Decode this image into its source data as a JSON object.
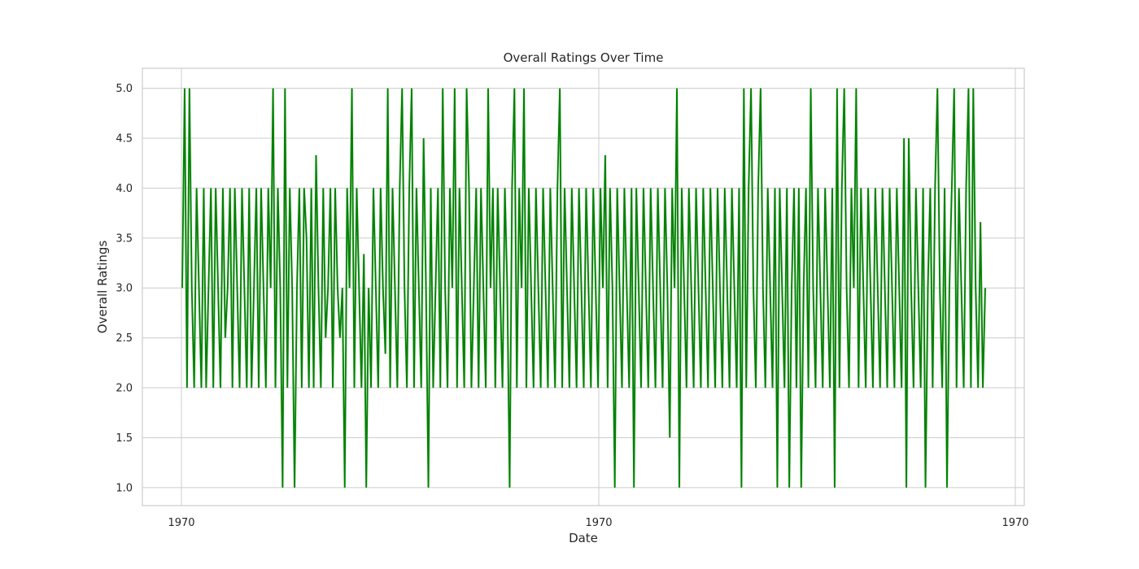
{
  "chart_data": {
    "type": "line",
    "title": "Overall Ratings Over Time",
    "xlabel": "Date",
    "ylabel": "Overall Ratings",
    "ylim": [
      0.82,
      5.2
    ],
    "yticks": [
      "1.0",
      "1.5",
      "2.0",
      "2.5",
      "3.0",
      "3.5",
      "4.0",
      "4.5",
      "5.0"
    ],
    "xticks": [
      "1970",
      "1970",
      "1970"
    ],
    "grid": true,
    "line_color": "#008000",
    "band_color": "#c7e6c7",
    "series": [
      {
        "values": [
          3.0,
          5.0,
          2.0,
          5.0,
          3.0,
          2.0,
          4.0,
          3.0,
          2.0,
          4.0,
          2.0,
          3.0,
          4.0,
          2.0,
          4.0,
          3.0,
          2.0,
          4.0,
          2.5,
          3.0,
          4.0,
          2.0,
          4.0,
          3.0,
          2.0,
          4.0,
          3.0,
          2.0,
          4.0,
          2.0,
          3.0,
          4.0,
          2.0,
          4.0,
          3.0,
          2.0,
          4.0,
          3.0,
          5.0,
          2.0,
          4.0,
          3.0,
          1.0,
          5.0,
          2.0,
          4.0,
          3.0,
          1.0,
          3.0,
          4.0,
          2.0,
          4.0,
          3.5,
          2.0,
          4.0,
          2.0,
          4.33,
          3.0,
          2.0,
          4.0,
          2.5,
          3.0,
          4.0,
          2.0,
          4.0,
          3.0,
          2.5,
          3.0,
          1.0,
          4.0,
          3.0,
          5.0,
          2.0,
          4.0,
          3.0,
          2.0,
          3.34,
          1.0,
          3.0,
          2.0,
          4.0,
          3.0,
          2.0,
          4.0,
          3.0,
          2.34,
          5.0,
          2.0,
          4.0,
          3.0,
          2.0,
          4.0,
          5.0,
          3.0,
          2.0,
          4.0,
          5.0,
          2.0,
          4.0,
          3.0,
          2.0,
          4.5,
          3.0,
          1.0,
          4.0,
          2.0,
          3.0,
          4.0,
          2.0,
          5.0,
          3.0,
          2.0,
          4.0,
          3.0,
          5.0,
          2.0,
          4.0,
          3.0,
          2.0,
          5.0,
          4.0,
          2.0,
          3.0,
          4.0,
          2.0,
          4.0,
          3.0,
          2.0,
          5.0,
          3.0,
          4.0,
          2.0,
          4.0,
          3.0,
          2.0,
          4.0,
          3.0,
          1.0,
          4.0,
          5.0,
          2.0,
          4.0,
          3.0,
          5.0,
          2.0,
          4.0,
          3.0,
          2.0,
          4.0,
          3.0,
          2.0,
          4.0,
          3.0,
          2.0,
          4.0,
          3.0,
          2.0,
          4.0,
          5.0,
          2.0,
          4.0,
          3.0,
          2.0,
          4.0,
          3.0,
          2.0,
          4.0,
          3.0,
          2.0,
          4.0,
          3.0,
          2.0,
          4.0,
          3.0,
          2.0,
          4.0,
          3.0,
          4.33,
          2.0,
          4.0,
          3.0,
          1.0,
          4.0,
          3.0,
          2.0,
          4.0,
          3.0,
          2.0,
          4.0,
          1.0,
          4.0,
          3.0,
          2.0,
          4.0,
          3.0,
          2.0,
          4.0,
          3.0,
          2.0,
          4.0,
          3.0,
          2.0,
          4.0,
          3.0,
          1.5,
          4.0,
          3.0,
          5.0,
          1.0,
          4.0,
          3.0,
          2.0,
          4.0,
          3.0,
          2.0,
          4.0,
          3.0,
          2.0,
          4.0,
          3.0,
          2.0,
          4.0,
          3.0,
          2.0,
          4.0,
          3.0,
          2.0,
          4.0,
          3.0,
          2.0,
          4.0,
          3.0,
          2.0,
          4.0,
          1.0,
          5.0,
          2.0,
          4.0,
          5.0,
          3.0,
          2.0,
          4.0,
          5.0,
          3.0,
          2.0,
          4.0,
          3.0,
          2.0,
          4.0,
          1.0,
          4.0,
          3.0,
          2.0,
          4.0,
          1.0,
          3.0,
          4.0,
          2.0,
          4.0,
          1.0,
          3.0,
          4.0,
          2.0,
          5.0,
          3.0,
          2.0,
          4.0,
          3.0,
          2.0,
          4.0,
          3.0,
          2.0,
          4.0,
          1.0,
          5.0,
          2.0,
          4.0,
          5.0,
          3.0,
          2.0,
          4.0,
          3.0,
          5.0,
          2.0,
          4.0,
          3.0,
          2.0,
          4.0,
          3.0,
          2.0,
          4.0,
          3.0,
          2.0,
          4.0,
          3.0,
          2.0,
          4.0,
          3.0,
          2.0,
          4.0,
          3.0,
          2.0,
          4.5,
          1.0,
          4.5,
          3.0,
          2.0,
          4.0,
          3.0,
          2.0,
          4.0,
          1.0,
          3.0,
          4.0,
          2.0,
          4.0,
          5.0,
          3.0,
          2.0,
          4.0,
          1.0,
          3.0,
          4.0,
          5.0,
          2.0,
          4.0,
          3.0,
          2.0,
          4.0,
          5.0,
          2.0,
          5.0,
          3.0,
          2.0,
          3.66,
          2.0,
          3.0
        ]
      }
    ]
  }
}
